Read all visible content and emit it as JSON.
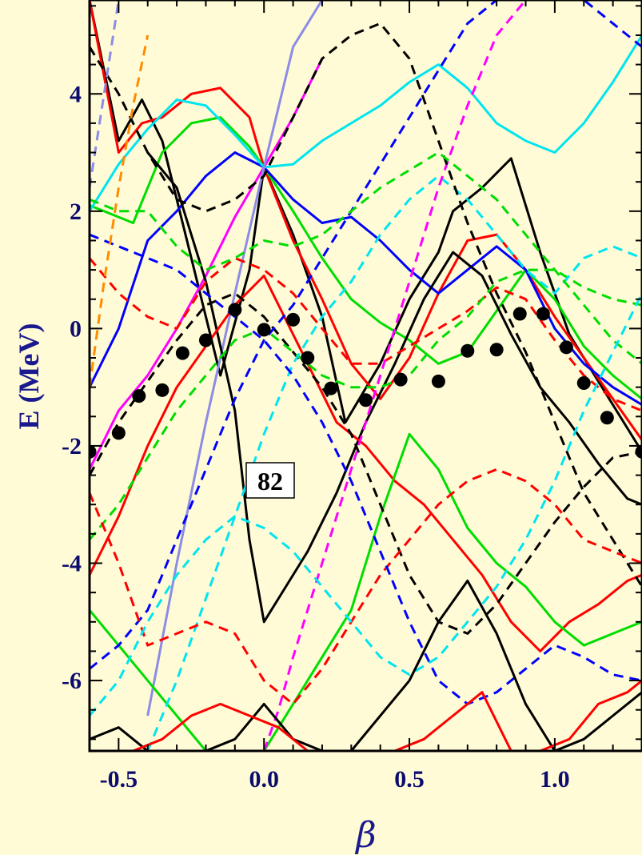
{
  "chart_data": {
    "type": "line",
    "title": "",
    "xlabel": "β",
    "ylabel": "E (MeV)",
    "xlim": [
      -0.6,
      1.3
    ],
    "ylim": [
      -7.2,
      5.6
    ],
    "x_ticks": [
      -0.5,
      0.0,
      0.5,
      1.0
    ],
    "x_tick_labels": [
      "-0.5",
      "0.0",
      "0.5",
      "1.0"
    ],
    "y_ticks": [
      -6,
      -4,
      -2,
      0,
      2,
      4
    ],
    "y_tick_labels": [
      "-6",
      "-4",
      "-2",
      "0",
      "2",
      "4"
    ],
    "annotation": "82",
    "annotation_pos": [
      0.0,
      -2.6
    ],
    "grid": false,
    "legend": "none",
    "colors": {
      "background": "#fffbd6",
      "black": "#000000",
      "red": "#ff0000",
      "green": "#00dd00",
      "blue": "#0000ff",
      "cyan": "#00e5ee",
      "magenta": "#ff00ff",
      "lilac": "#8c8ce6",
      "orange": "#ff8c00",
      "axis_text": "#0c0c6e"
    },
    "fermi_points": {
      "x": [
        -0.6,
        -0.5,
        -0.43,
        -0.35,
        -0.28,
        -0.2,
        -0.1,
        0.0,
        0.1,
        0.15,
        0.23,
        0.35,
        0.47,
        0.6,
        0.7,
        0.8,
        0.88,
        0.96,
        1.04,
        1.1,
        1.18,
        1.3
      ],
      "y": [
        -2.1,
        -1.78,
        -1.15,
        -1.05,
        -0.42,
        -0.2,
        0.32,
        -0.02,
        0.15,
        -0.5,
        -1.02,
        -1.22,
        -0.87,
        -0.9,
        -0.38,
        -0.36,
        0.25,
        0.25,
        -0.32,
        -0.93,
        -1.52,
        -2.1
      ]
    },
    "series": [
      {
        "color": "black",
        "dash": false,
        "x": [
          -0.6,
          -0.5,
          -0.42,
          -0.35,
          -0.25,
          -0.15,
          -0.05,
          0.0,
          0.1,
          0.2,
          0.28,
          0.4,
          0.5,
          0.6,
          0.65,
          0.75,
          0.85,
          0.95,
          1.05,
          1.15,
          1.25,
          1.3
        ],
        "y": [
          5.6,
          3.2,
          3.9,
          3.2,
          1.2,
          -0.8,
          1.0,
          2.75,
          1.6,
          0.2,
          -1.6,
          -0.6,
          0.5,
          1.3,
          2.0,
          2.4,
          2.9,
          1.3,
          -0.1,
          -0.9,
          -1.7,
          -2.1
        ]
      },
      {
        "color": "red",
        "dash": false,
        "x": [
          -0.6,
          -0.5,
          -0.42,
          -0.35,
          -0.25,
          -0.15,
          -0.05,
          0.0,
          0.1,
          0.2,
          0.3,
          0.4,
          0.5,
          0.6,
          0.7,
          0.8,
          0.9,
          1.0,
          1.1,
          1.2,
          1.3
        ],
        "y": [
          5.6,
          3.0,
          3.5,
          3.6,
          4.0,
          4.1,
          3.6,
          2.75,
          1.5,
          0.5,
          -0.6,
          -1.2,
          -0.5,
          0.6,
          1.5,
          1.6,
          1.0,
          0.2,
          -0.5,
          -1.2,
          -1.9
        ]
      },
      {
        "color": "green",
        "dash": false,
        "x": [
          -0.6,
          -0.45,
          -0.35,
          -0.25,
          -0.15,
          -0.05,
          0.0,
          0.1,
          0.2,
          0.3,
          0.4,
          0.5,
          0.6,
          0.7,
          0.8,
          0.9,
          1.0,
          1.1,
          1.2,
          1.3
        ],
        "y": [
          2.1,
          1.8,
          3.0,
          3.5,
          3.6,
          3.1,
          2.75,
          2.0,
          1.2,
          0.5,
          0.1,
          -0.2,
          -0.6,
          -0.4,
          0.3,
          1.0,
          0.5,
          -0.3,
          -0.8,
          -1.2
        ]
      },
      {
        "color": "blue",
        "dash": false,
        "x": [
          -0.6,
          -0.5,
          -0.4,
          -0.3,
          -0.2,
          -0.1,
          0.0,
          0.1,
          0.2,
          0.3,
          0.4,
          0.5,
          0.6,
          0.7,
          0.8,
          0.9,
          1.0,
          1.1,
          1.2,
          1.3
        ],
        "y": [
          -1.0,
          0.0,
          1.5,
          2.0,
          2.6,
          3.0,
          2.75,
          2.2,
          1.8,
          1.9,
          1.5,
          1.0,
          0.6,
          1.0,
          1.4,
          1.0,
          0.0,
          -0.6,
          -1.0,
          -1.3
        ]
      },
      {
        "color": "cyan",
        "dash": false,
        "x": [
          -0.6,
          -0.5,
          -0.4,
          -0.3,
          -0.2,
          -0.1,
          0.0,
          0.1,
          0.2,
          0.3,
          0.4,
          0.5,
          0.6,
          0.7,
          0.8,
          0.9,
          1.0,
          1.1,
          1.2,
          1.3
        ],
        "y": [
          2.0,
          2.8,
          3.4,
          3.9,
          3.8,
          3.3,
          2.75,
          2.8,
          3.2,
          3.5,
          3.8,
          4.2,
          4.5,
          4.1,
          3.5,
          3.2,
          3.0,
          3.5,
          4.2,
          5.0
        ]
      },
      {
        "color": "magenta",
        "dash": false,
        "x": [
          -0.6,
          -0.5,
          -0.4,
          -0.3,
          -0.2,
          -0.1,
          0.0,
          0.1,
          0.2
        ],
        "y": [
          -2.4,
          -1.4,
          -0.8,
          0.0,
          0.9,
          1.9,
          2.75,
          3.6,
          4.6
        ]
      },
      {
        "color": "lilac",
        "dash": false,
        "x": [
          -0.4,
          -0.3,
          -0.2,
          -0.1,
          0.0,
          0.1,
          0.2
        ],
        "y": [
          -6.6,
          -4.0,
          -1.6,
          0.6,
          2.75,
          4.8,
          5.6
        ]
      },
      {
        "color": "black",
        "dash": false,
        "x": [
          -0.4,
          -0.3,
          -0.2,
          -0.1,
          -0.05,
          0.0,
          0.05,
          0.15,
          0.25,
          0.35,
          0.45,
          0.55,
          0.65,
          0.75,
          0.85,
          0.95,
          1.05,
          1.15,
          1.25,
          1.3
        ],
        "y": [
          3.0,
          2.4,
          0.8,
          -1.4,
          -3.6,
          -5.0,
          -4.6,
          -3.8,
          -2.8,
          -1.6,
          -0.6,
          0.5,
          1.3,
          0.9,
          -0.1,
          -1.0,
          -1.6,
          -2.3,
          -2.9,
          -3.0
        ]
      },
      {
        "color": "red",
        "dash": false,
        "x": [
          -0.6,
          -0.5,
          -0.4,
          -0.3,
          -0.2,
          -0.1,
          0.0,
          0.05,
          0.15,
          0.25,
          0.35,
          0.45,
          0.55,
          0.65,
          0.75,
          0.85,
          0.95,
          1.05,
          1.15,
          1.25,
          1.3
        ],
        "y": [
          -4.2,
          -3.2,
          -2.0,
          -1.0,
          -0.3,
          0.4,
          0.9,
          0.4,
          -0.6,
          -1.6,
          -2.0,
          -2.6,
          -3.0,
          -3.6,
          -4.2,
          -5.0,
          -5.5,
          -5.0,
          -4.7,
          -4.3,
          -4.2
        ]
      },
      {
        "color": "green",
        "dash": false,
        "x": [
          -0.6,
          -0.5,
          -0.4,
          -0.3,
          -0.2,
          -0.1,
          0.0,
          0.1,
          0.2,
          0.3,
          0.4,
          0.5,
          0.6,
          0.7,
          0.8,
          0.9,
          1.0,
          1.1,
          1.2,
          1.3
        ],
        "y": [
          -4.8,
          -5.4,
          -6.0,
          -6.6,
          -7.2,
          -7.2,
          -7.2,
          -6.4,
          -5.6,
          -4.8,
          -3.2,
          -1.8,
          -2.4,
          -3.4,
          -4.0,
          -4.4,
          -5.0,
          -5.4,
          -5.2,
          -5.0
        ]
      },
      {
        "color": "black",
        "dash": true,
        "x": [
          -0.6,
          -0.5,
          -0.4,
          -0.3,
          -0.2,
          -0.1,
          0.0,
          0.1,
          0.2,
          0.3,
          0.4,
          0.5,
          0.6,
          0.7,
          0.8,
          0.9,
          1.0,
          1.1,
          1.2,
          1.3
        ],
        "y": [
          -2.5,
          -1.6,
          -0.9,
          -0.2,
          0.4,
          0.6,
          0.2,
          -0.4,
          -1.0,
          -1.8,
          -3.0,
          -4.2,
          -5.0,
          -5.2,
          -4.7,
          -4.0,
          -3.3,
          -2.7,
          -2.2,
          -2.1
        ]
      },
      {
        "color": "red",
        "dash": true,
        "x": [
          -0.6,
          -0.5,
          -0.4,
          -0.3,
          -0.2,
          -0.1,
          0.0,
          0.1,
          0.2,
          0.3,
          0.4,
          0.5,
          0.6,
          0.7,
          0.8,
          0.9,
          1.0,
          1.1,
          1.2,
          1.3
        ],
        "y": [
          1.2,
          0.6,
          0.2,
          0.0,
          0.8,
          1.2,
          1.0,
          0.6,
          0.0,
          -0.6,
          -0.6,
          -0.3,
          0.0,
          0.3,
          0.7,
          0.5,
          -0.2,
          -0.8,
          -1.2,
          -1.4
        ]
      },
      {
        "color": "green",
        "dash": true,
        "x": [
          -0.6,
          -0.5,
          -0.4,
          -0.3,
          -0.2,
          -0.1,
          0.0,
          0.1,
          0.2,
          0.3,
          0.4,
          0.5,
          0.6,
          0.7,
          0.8,
          0.9,
          1.0,
          1.1,
          1.2,
          1.3
        ],
        "y": [
          -3.6,
          -3.0,
          -2.2,
          -1.4,
          -0.8,
          -0.2,
          0.0,
          -0.4,
          -0.8,
          -1.0,
          -1.0,
          -0.8,
          -0.2,
          0.2,
          0.8,
          1.0,
          1.0,
          0.7,
          0.5,
          0.4
        ]
      },
      {
        "color": "blue",
        "dash": true,
        "x": [
          -0.6,
          -0.5,
          -0.4,
          -0.3,
          -0.2,
          -0.1,
          0.0,
          0.1,
          0.2,
          0.3,
          0.4,
          0.5,
          0.6,
          0.7,
          0.8,
          0.9,
          1.0,
          1.1,
          1.2,
          1.3
        ],
        "y": [
          -5.8,
          -5.4,
          -4.8,
          -3.6,
          -2.4,
          -1.2,
          -0.2,
          0.4,
          1.2,
          2.0,
          2.8,
          3.6,
          4.4,
          5.2,
          5.6,
          5.6,
          5.6,
          5.6,
          5.2,
          4.8
        ]
      },
      {
        "color": "cyan",
        "dash": true,
        "x": [
          -0.4,
          -0.3,
          -0.2,
          -0.1,
          0.0,
          0.1,
          0.2,
          0.3,
          0.4,
          0.5,
          0.6,
          0.7,
          0.8,
          0.9,
          1.0,
          1.1,
          1.2,
          1.3
        ],
        "y": [
          -7.2,
          -6.0,
          -4.6,
          -3.2,
          -1.8,
          -0.6,
          0.2,
          0.8,
          1.6,
          2.2,
          2.6,
          2.2,
          1.6,
          1.0,
          0.6,
          1.2,
          1.4,
          1.2
        ]
      },
      {
        "color": "magenta",
        "dash": true,
        "x": [
          0.0,
          0.05,
          0.1,
          0.2,
          0.3,
          0.4,
          0.5,
          0.6,
          0.7,
          0.8,
          0.9
        ],
        "y": [
          -7.2,
          -6.5,
          -5.6,
          -4.0,
          -2.4,
          -0.8,
          0.8,
          2.4,
          3.8,
          5.0,
          5.6
        ]
      },
      {
        "color": "black",
        "dash": true,
        "x": [
          -0.6,
          -0.5,
          -0.4,
          -0.3,
          -0.2,
          -0.1,
          0.0,
          0.1,
          0.2,
          0.3,
          0.4,
          0.5,
          0.6,
          0.7,
          0.8,
          0.9,
          1.0,
          1.1,
          1.2,
          1.3
        ],
        "y": [
          4.8,
          4.0,
          3.0,
          2.2,
          2.0,
          2.2,
          2.6,
          3.6,
          4.6,
          5.0,
          5.2,
          4.6,
          3.2,
          1.8,
          0.6,
          -0.4,
          -1.6,
          -2.8,
          -3.6,
          -4.4
        ]
      },
      {
        "color": "red",
        "dash": true,
        "x": [
          -0.6,
          -0.5,
          -0.4,
          -0.3,
          -0.2,
          -0.1,
          0.0,
          0.1,
          0.2,
          0.3,
          0.4,
          0.5,
          0.6,
          0.7,
          0.8,
          0.9,
          1.0,
          1.1,
          1.2,
          1.3
        ],
        "y": [
          -2.8,
          -4.0,
          -5.4,
          -5.2,
          -5.0,
          -5.2,
          -6.0,
          -6.4,
          -5.8,
          -5.0,
          -4.2,
          -3.6,
          -3.0,
          -2.6,
          -2.4,
          -2.6,
          -3.0,
          -3.6,
          -3.8,
          -4.0
        ]
      },
      {
        "color": "green",
        "dash": true,
        "x": [
          -0.6,
          -0.5,
          -0.4,
          -0.3,
          -0.2,
          -0.1,
          0.0,
          0.1,
          0.2,
          0.3,
          0.4,
          0.5,
          0.6,
          0.7,
          0.8,
          0.9,
          1.0,
          1.1,
          1.2,
          1.3
        ],
        "y": [
          2.2,
          2.0,
          2.0,
          1.4,
          1.0,
          1.2,
          1.5,
          1.4,
          1.6,
          2.0,
          2.4,
          2.7,
          3.0,
          2.6,
          2.2,
          1.6,
          1.0,
          0.4,
          -0.2,
          -0.6
        ]
      },
      {
        "color": "blue",
        "dash": true,
        "x": [
          -0.6,
          -0.5,
          -0.4,
          -0.3,
          -0.2,
          -0.1,
          0.0,
          0.1,
          0.2,
          0.3,
          0.4,
          0.5,
          0.6,
          0.7,
          0.8,
          0.9,
          1.0,
          1.1,
          1.2,
          1.3
        ],
        "y": [
          1.6,
          1.4,
          1.2,
          1.0,
          0.6,
          0.2,
          -0.2,
          -0.8,
          -1.6,
          -2.6,
          -3.8,
          -5.0,
          -6.0,
          -6.4,
          -6.2,
          -5.8,
          -5.4,
          -5.6,
          -5.9,
          -6.0
        ]
      },
      {
        "color": "cyan",
        "dash": true,
        "x": [
          -0.6,
          -0.5,
          -0.4,
          -0.3,
          -0.2,
          -0.1,
          0.0,
          0.1,
          0.2,
          0.3,
          0.4,
          0.5,
          0.6,
          0.7,
          0.8,
          0.9,
          1.0,
          1.1,
          1.2,
          1.3
        ],
        "y": [
          -6.6,
          -6.0,
          -5.0,
          -4.2,
          -3.6,
          -3.2,
          -3.4,
          -3.8,
          -4.4,
          -5.0,
          -5.6,
          -5.9,
          -5.6,
          -5.0,
          -4.4,
          -3.6,
          -2.6,
          -1.4,
          -0.4,
          0.6
        ]
      },
      {
        "color": "orange",
        "dash": true,
        "x": [
          -0.6,
          -0.55,
          -0.5,
          -0.45,
          -0.4
        ],
        "y": [
          -1.0,
          0.8,
          2.4,
          3.8,
          5.0
        ]
      },
      {
        "color": "lilac",
        "dash": true,
        "x": [
          -0.6,
          -0.55,
          -0.5
        ],
        "y": [
          2.4,
          4.0,
          5.6
        ]
      },
      {
        "color": "black",
        "dash": false,
        "x": [
          -0.6,
          -0.5,
          -0.4,
          -0.3,
          -0.2,
          -0.1,
          0.0,
          0.1,
          0.2,
          0.3,
          0.4,
          0.5,
          0.6,
          0.7,
          0.8,
          0.9,
          1.0,
          1.1,
          1.2,
          1.3
        ],
        "y": [
          -7.0,
          -6.8,
          -7.2,
          -7.2,
          -7.2,
          -7.0,
          -6.4,
          -7.0,
          -7.2,
          -7.2,
          -6.6,
          -6.0,
          -5.0,
          -4.3,
          -5.2,
          -6.4,
          -7.2,
          -7.0,
          -6.6,
          -6.2
        ]
      },
      {
        "color": "red",
        "dash": false,
        "x": [
          -0.6,
          -0.45,
          -0.35,
          -0.25,
          -0.15,
          -0.05,
          0.05,
          0.15,
          0.25,
          0.35,
          0.45,
          0.55,
          0.65,
          0.75,
          0.85,
          0.95,
          1.05,
          1.15,
          1.25,
          1.3
        ],
        "y": [
          -7.2,
          -7.2,
          -7.0,
          -6.6,
          -6.4,
          -6.6,
          -6.8,
          -7.2,
          -7.2,
          -7.2,
          -7.2,
          -7.0,
          -6.6,
          -6.2,
          -7.2,
          -7.2,
          -7.0,
          -6.4,
          -6.2,
          -6.0
        ]
      }
    ]
  }
}
